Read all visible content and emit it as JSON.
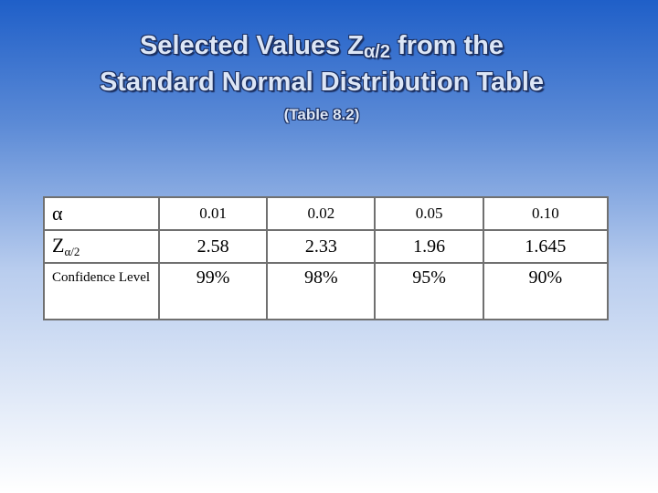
{
  "header": {
    "title_line1": {
      "text": "Selected Values Z",
      "subscript": "α/2",
      "after": " from the"
    },
    "title_line2": "Standard Normal Distribution Table",
    "subtitle": "(Table 8.2)"
  },
  "table": {
    "rows": [
      {
        "header": {
          "text": "α"
        },
        "cells": [
          "0.01",
          "0.02",
          "0.05",
          "0.10"
        ]
      },
      {
        "header": {
          "text": "Z",
          "subscript": "α/2"
        },
        "cells": [
          "2.58",
          "2.33",
          "1.96",
          "1.645"
        ]
      },
      {
        "header": {
          "text": "Confidence Level"
        },
        "cells": [
          "99%",
          "98%",
          "95%",
          "90%"
        ]
      }
    ]
  }
}
